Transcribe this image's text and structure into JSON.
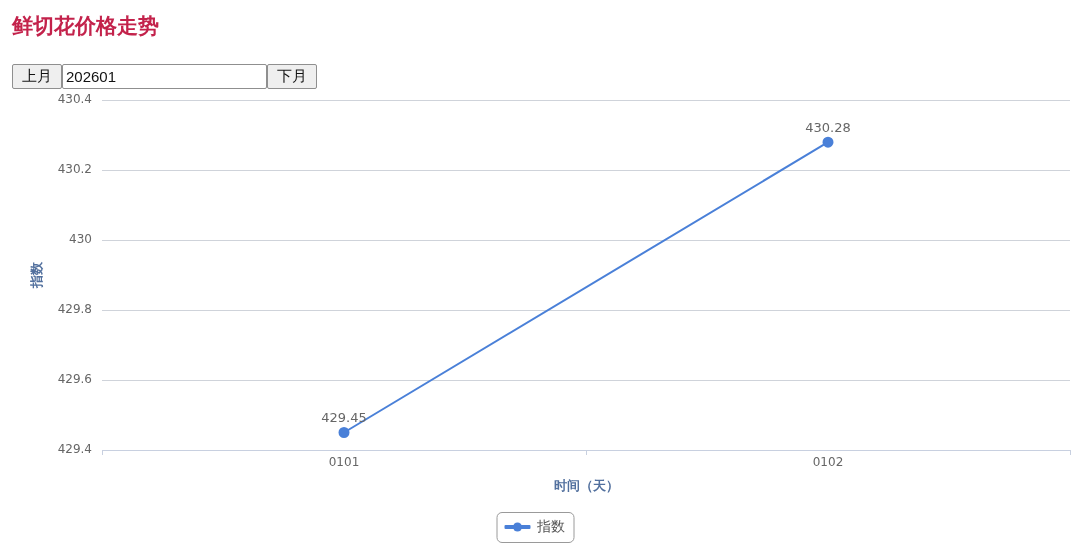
{
  "chart_data": {
    "type": "line",
    "title": "鲜切花价格走势",
    "xlabel": "时间（天）",
    "ylabel": "指数",
    "annotations": [
      "上月",
      "202601",
      "下月"
    ],
    "categories": [
      "0101",
      "0102"
    ],
    "series": [
      {
        "name": "指数",
        "color": "#4a80d8",
        "values": [
          429.45,
          430.28
        ]
      }
    ],
    "ylim": [
      429.4,
      430.4
    ],
    "yticks": [
      429.4,
      429.6,
      429.8,
      430,
      430.2,
      430.4
    ],
    "grid": "y",
    "legend": "bottom",
    "marker": "circle",
    "line_style": "solid",
    "data_labels": true
  }
}
